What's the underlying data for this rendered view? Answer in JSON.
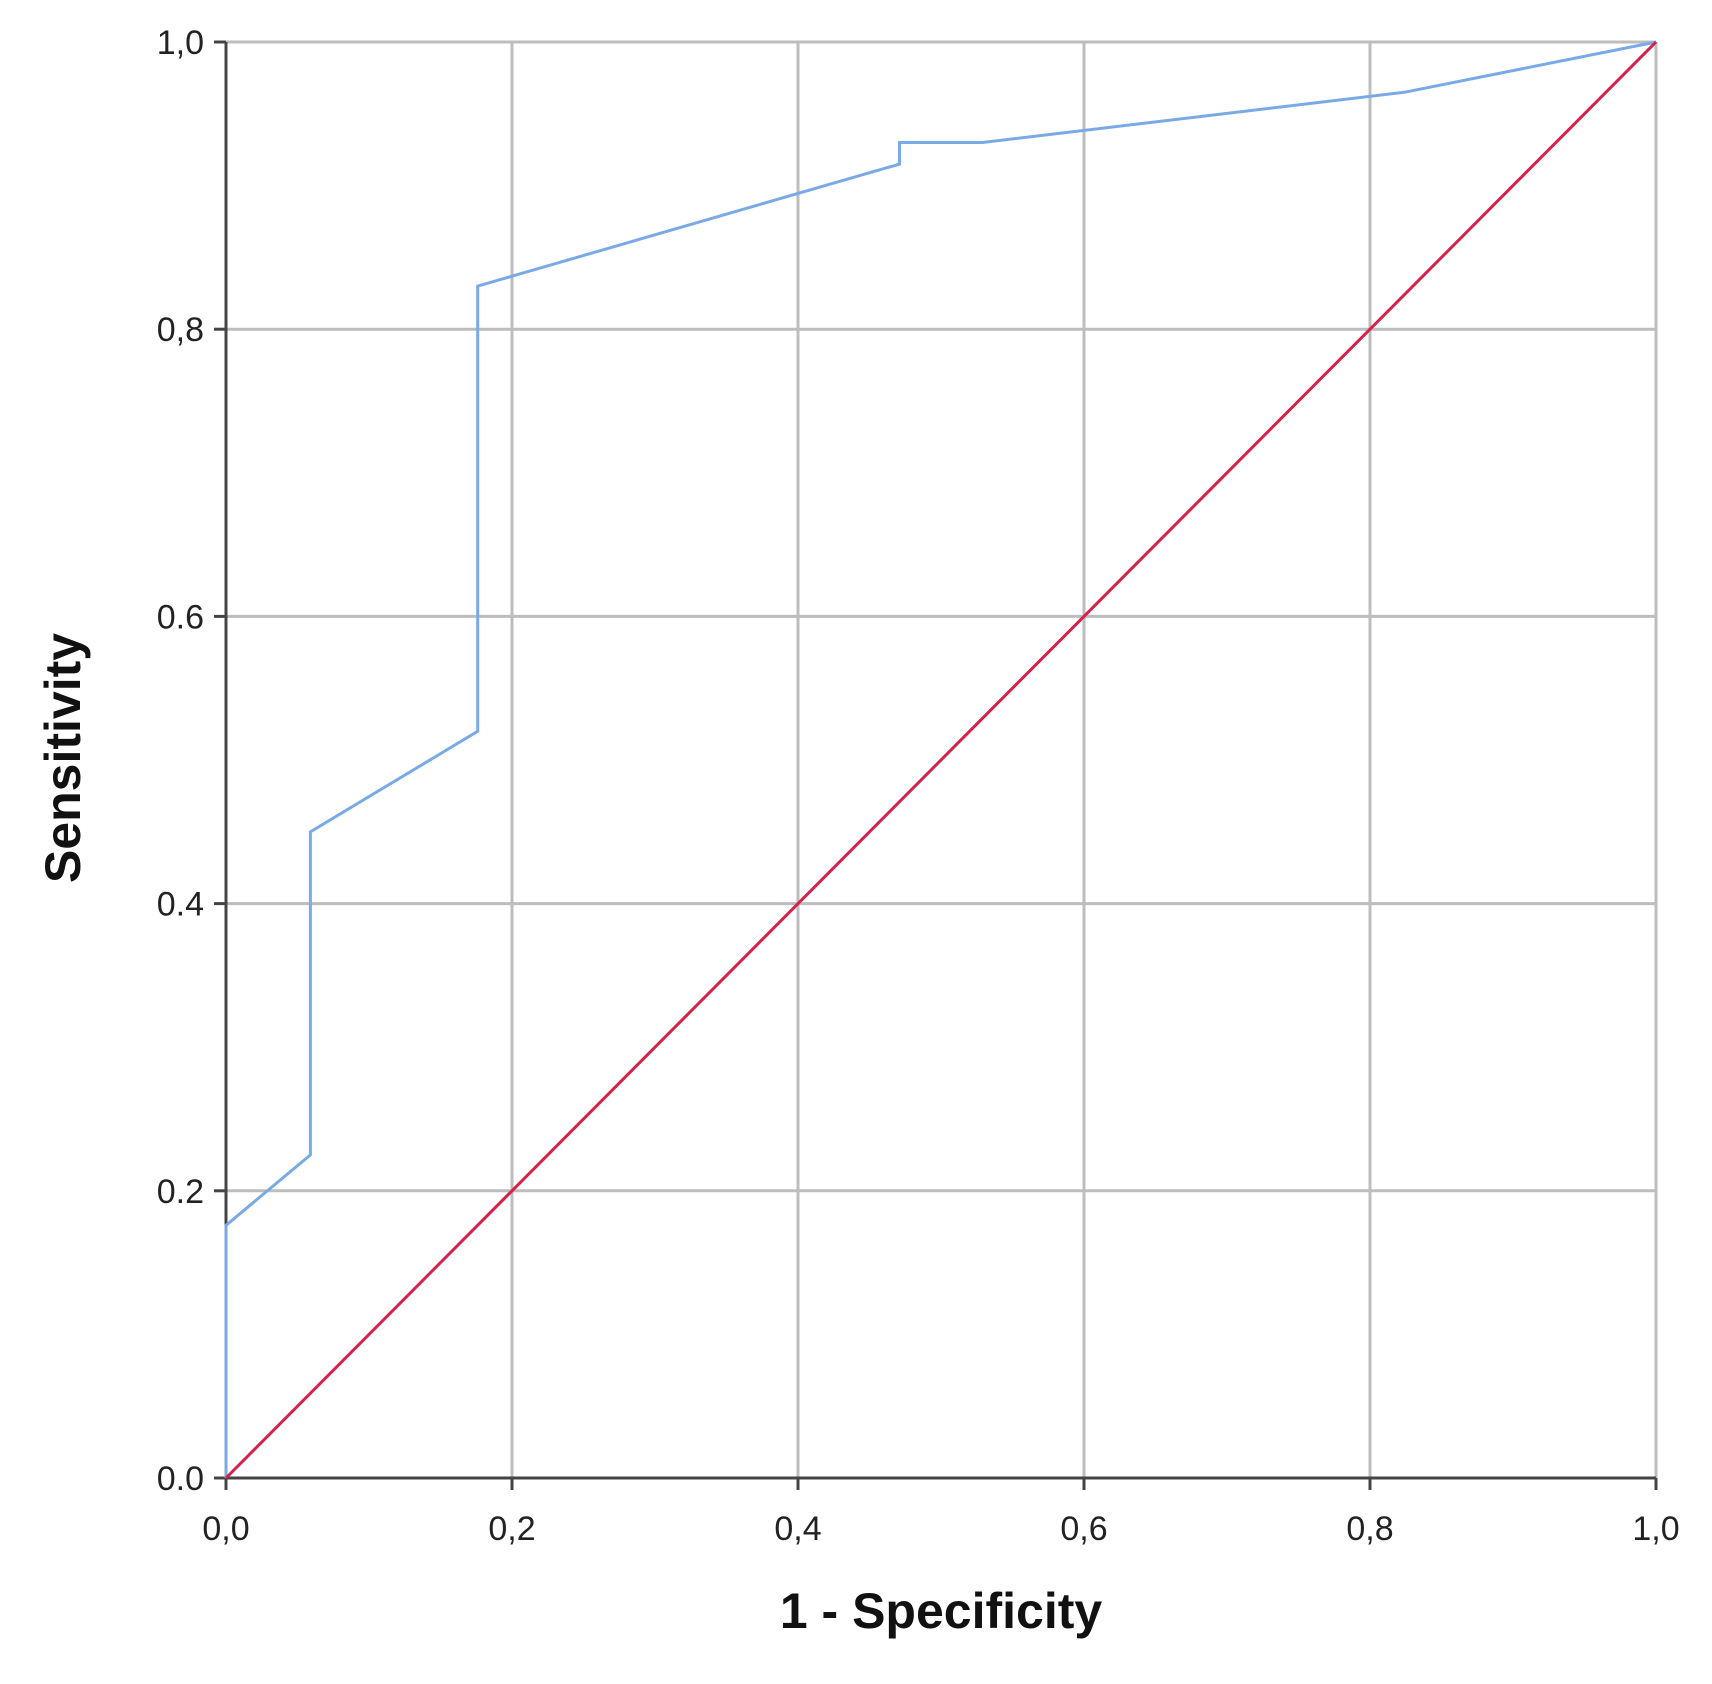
{
  "chart_data": {
    "type": "line",
    "title": "",
    "xlabel": "1 - Specificity",
    "ylabel": "Sensitivity",
    "xlim": [
      0,
      1
    ],
    "ylim": [
      0,
      1
    ],
    "grid": true,
    "x_tick_labels": [
      "0,0",
      "0,2",
      "0,4",
      "0,6",
      "0,8",
      "1,0"
    ],
    "y_tick_labels": [
      "0.0",
      "0.2",
      "0.4",
      "0.6",
      "0,8",
      "1,0"
    ],
    "x_ticks": [
      0,
      0.2,
      0.4,
      0.6,
      0.8,
      1.0
    ],
    "y_ticks": [
      0,
      0.2,
      0.4,
      0.6,
      0.8,
      1.0
    ],
    "series": [
      {
        "color": "#7aaae6",
        "x": [
          0.0,
          0.0,
          0.059,
          0.059,
          0.176,
          0.176,
          0.471,
          0.471,
          0.529,
          0.824,
          1.0
        ],
        "y": [
          0.0,
          0.176,
          0.225,
          0.45,
          0.52,
          0.83,
          0.915,
          0.93,
          0.93,
          0.965,
          1.0
        ]
      },
      {
        "color": "#d6224a",
        "x": [
          0.0,
          1.0
        ],
        "y": [
          0.0,
          1.0
        ]
      }
    ]
  }
}
